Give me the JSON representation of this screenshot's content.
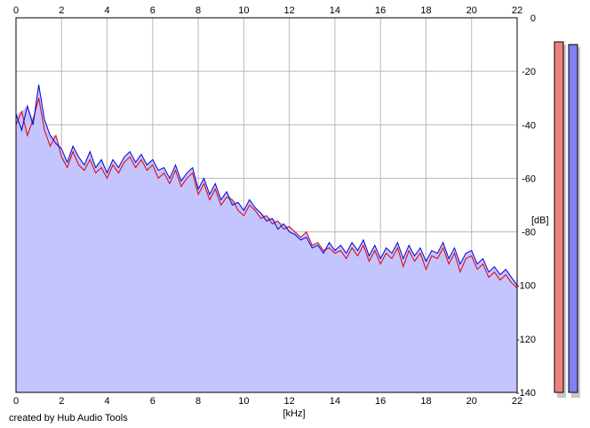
{
  "chart_data": {
    "type": "line",
    "xlabel": "[kHz]",
    "ylabel": "[dB]",
    "xlim": [
      0,
      22
    ],
    "ylim": [
      -140,
      0
    ],
    "x_ticks": [
      "0",
      "2",
      "4",
      "6",
      "8",
      "10",
      "12",
      "14",
      "16",
      "18",
      "20",
      "22"
    ],
    "y_ticks": [
      "0",
      "-20",
      "-40",
      "-60",
      "-80",
      "-100",
      "-120",
      "-140"
    ],
    "grid": true,
    "series": [
      {
        "color": "#e00000",
        "x": [
          0,
          0.25,
          0.5,
          0.75,
          1.0,
          1.25,
          1.5,
          1.75,
          2.0,
          2.25,
          2.5,
          2.75,
          3.0,
          3.25,
          3.5,
          3.75,
          4.0,
          4.25,
          4.5,
          4.75,
          5.0,
          5.25,
          5.5,
          5.75,
          6.0,
          6.25,
          6.5,
          6.75,
          7.0,
          7.25,
          7.5,
          7.75,
          8.0,
          8.25,
          8.5,
          8.75,
          9.0,
          9.25,
          9.5,
          9.75,
          10.0,
          10.25,
          10.5,
          10.75,
          11.0,
          11.25,
          11.5,
          11.75,
          12.0,
          12.25,
          12.5,
          12.75,
          13.0,
          13.25,
          13.5,
          13.75,
          14.0,
          14.25,
          14.5,
          14.75,
          15.0,
          15.25,
          15.5,
          15.75,
          16.0,
          16.25,
          16.5,
          16.75,
          17.0,
          17.25,
          17.5,
          17.75,
          18.0,
          18.25,
          18.5,
          18.75,
          19.0,
          19.25,
          19.5,
          19.75,
          20.0,
          20.25,
          20.5,
          20.75,
          21.0,
          21.25,
          21.5,
          21.75,
          22.0
        ],
        "values": [
          -40,
          -35,
          -44,
          -38,
          -30,
          -42,
          -48,
          -44,
          -52,
          -56,
          -50,
          -55,
          -57,
          -53,
          -58,
          -56,
          -60,
          -55,
          -58,
          -54,
          -52,
          -56,
          -53,
          -57,
          -55,
          -60,
          -58,
          -62,
          -57,
          -63,
          -60,
          -58,
          -66,
          -62,
          -68,
          -64,
          -70,
          -67,
          -68,
          -72,
          -74,
          -70,
          -72,
          -75,
          -74,
          -77,
          -76,
          -79,
          -78,
          -80,
          -82,
          -80,
          -85,
          -84,
          -87,
          -86,
          -88,
          -87,
          -90,
          -86,
          -89,
          -85,
          -91,
          -87,
          -92,
          -88,
          -90,
          -86,
          -93,
          -87,
          -91,
          -88,
          -94,
          -89,
          -90,
          -86,
          -92,
          -88,
          -95,
          -90,
          -89,
          -94,
          -92,
          -97,
          -95,
          -98,
          -96,
          -99,
          -101
        ]
      },
      {
        "color": "#0000d8",
        "x": [
          0,
          0.25,
          0.5,
          0.75,
          1.0,
          1.25,
          1.5,
          1.75,
          2.0,
          2.25,
          2.5,
          2.75,
          3.0,
          3.25,
          3.5,
          3.75,
          4.0,
          4.25,
          4.5,
          4.75,
          5.0,
          5.25,
          5.5,
          5.75,
          6.0,
          6.25,
          6.5,
          6.75,
          7.0,
          7.25,
          7.5,
          7.75,
          8.0,
          8.25,
          8.5,
          8.75,
          9.0,
          9.25,
          9.5,
          9.75,
          10.0,
          10.25,
          10.5,
          10.75,
          11.0,
          11.25,
          11.5,
          11.75,
          12.0,
          12.25,
          12.5,
          12.75,
          13.0,
          13.25,
          13.5,
          13.75,
          14.0,
          14.25,
          14.5,
          14.75,
          15.0,
          15.25,
          15.5,
          15.75,
          16.0,
          16.25,
          16.5,
          16.75,
          17.0,
          17.25,
          17.5,
          17.75,
          18.0,
          18.25,
          18.5,
          18.75,
          19.0,
          19.25,
          19.5,
          19.75,
          20.0,
          20.25,
          20.5,
          20.75,
          21.0,
          21.25,
          21.5,
          21.75,
          22.0
        ],
        "values": [
          -36,
          -42,
          -33,
          -40,
          -25,
          -38,
          -44,
          -47,
          -49,
          -54,
          -48,
          -52,
          -55,
          -50,
          -56,
          -53,
          -58,
          -53,
          -56,
          -52,
          -50,
          -54,
          -51,
          -55,
          -53,
          -57,
          -56,
          -60,
          -55,
          -61,
          -58,
          -56,
          -64,
          -60,
          -66,
          -62,
          -68,
          -65,
          -70,
          -69,
          -72,
          -68,
          -71,
          -73,
          -76,
          -75,
          -79,
          -77,
          -80,
          -81,
          -83,
          -82,
          -86,
          -85,
          -88,
          -84,
          -87,
          -85,
          -88,
          -84,
          -87,
          -83,
          -89,
          -85,
          -90,
          -86,
          -88,
          -84,
          -90,
          -85,
          -89,
          -86,
          -91,
          -87,
          -88,
          -84,
          -90,
          -86,
          -92,
          -88,
          -87,
          -92,
          -90,
          -95,
          -93,
          -96,
          -94,
          -97,
          -100
        ]
      }
    ]
  },
  "meters": {
    "left_color": "#f08080",
    "right_color": "#8080f0",
    "left_level_db": -9,
    "right_level_db": -10
  },
  "footer": {
    "credit": "created by Hub Audio Tools"
  }
}
